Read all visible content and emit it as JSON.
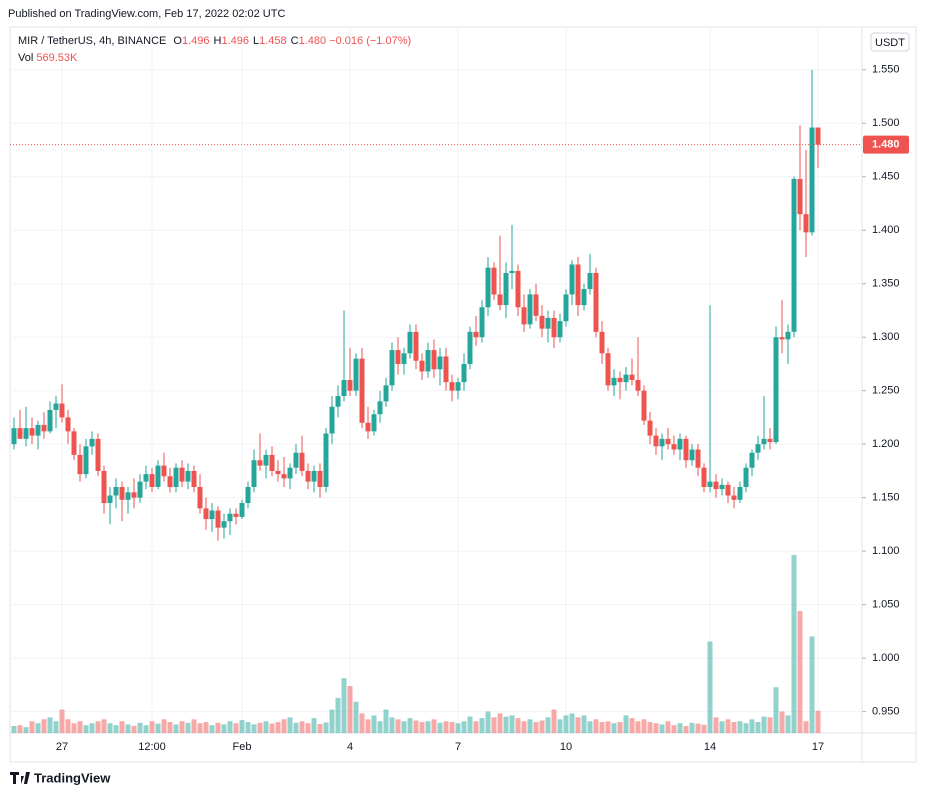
{
  "header": {
    "published": "Published on TradingView.com, Feb 17, 2022 02:02 UTC"
  },
  "chart_data": {
    "type": "candlestick",
    "symbol": "MIR / TetherUS, 4h, BINANCE",
    "legend": [
      {
        "key": "O",
        "value": "1.496"
      },
      {
        "key": "H",
        "value": "1.496"
      },
      {
        "key": "L",
        "value": "1.458"
      },
      {
        "key": "C",
        "value": "1.480"
      }
    ],
    "change": "−0.016 (−1.07%)",
    "currency": "USDT",
    "categories": [
      null,
      null,
      null,
      null,
      null,
      null,
      null,
      null,
      "27",
      null,
      null,
      null,
      null,
      null,
      null,
      null,
      null,
      null,
      null,
      null,
      null,
      null,
      null,
      "12:00",
      null,
      null,
      null,
      null,
      null,
      null,
      null,
      null,
      null,
      null,
      null,
      null,
      null,
      null,
      "Feb",
      null,
      null,
      null,
      null,
      null,
      null,
      null,
      null,
      null,
      null,
      null,
      null,
      null,
      null,
      null,
      null,
      null,
      "4",
      null,
      null,
      null,
      null,
      null,
      null,
      null,
      null,
      null,
      null,
      null,
      null,
      null,
      null,
      null,
      null,
      null,
      "7",
      null,
      null,
      null,
      null,
      null,
      null,
      null,
      null,
      null,
      null,
      null,
      null,
      null,
      null,
      null,
      null,
      null,
      "10",
      null,
      null,
      null,
      null,
      null,
      null,
      null,
      null,
      null,
      null,
      null,
      null,
      null,
      null,
      null,
      null,
      null,
      null,
      null,
      null,
      null,
      null,
      null,
      "14",
      null,
      null,
      null,
      null,
      null,
      null,
      null,
      null,
      null,
      null,
      null,
      null,
      null,
      null,
      null,
      null,
      null,
      "17"
    ],
    "ohlc": [
      [
        1.2,
        1.225,
        1.195,
        1.215
      ],
      [
        1.215,
        1.232,
        1.205,
        1.205
      ],
      [
        1.205,
        1.235,
        1.198,
        1.215
      ],
      [
        1.215,
        1.225,
        1.2,
        1.208
      ],
      [
        1.208,
        1.222,
        1.195,
        1.218
      ],
      [
        1.218,
        1.23,
        1.205,
        1.212
      ],
      [
        1.212,
        1.24,
        1.21,
        1.232
      ],
      [
        1.232,
        1.245,
        1.215,
        1.238
      ],
      [
        1.238,
        1.256,
        1.22,
        1.225
      ],
      [
        1.225,
        1.232,
        1.2,
        1.212
      ],
      [
        1.212,
        1.215,
        1.185,
        1.19
      ],
      [
        1.19,
        1.2,
        1.165,
        1.172
      ],
      [
        1.172,
        1.205,
        1.168,
        1.198
      ],
      [
        1.198,
        1.212,
        1.19,
        1.205
      ],
      [
        1.205,
        1.21,
        1.17,
        1.175
      ],
      [
        1.175,
        1.18,
        1.135,
        1.145
      ],
      [
        1.145,
        1.16,
        1.125,
        1.152
      ],
      [
        1.152,
        1.168,
        1.14,
        1.16
      ],
      [
        1.16,
        1.165,
        1.128,
        1.148
      ],
      [
        1.148,
        1.16,
        1.135,
        1.155
      ],
      [
        1.155,
        1.168,
        1.14,
        1.15
      ],
      [
        1.15,
        1.172,
        1.145,
        1.165
      ],
      [
        1.165,
        1.18,
        1.158,
        1.172
      ],
      [
        1.172,
        1.178,
        1.155,
        1.16
      ],
      [
        1.16,
        1.185,
        1.158,
        1.18
      ],
      [
        1.18,
        1.192,
        1.165,
        1.17
      ],
      [
        1.17,
        1.178,
        1.155,
        1.16
      ],
      [
        1.16,
        1.182,
        1.155,
        1.178
      ],
      [
        1.178,
        1.185,
        1.16,
        1.165
      ],
      [
        1.165,
        1.182,
        1.158,
        1.175
      ],
      [
        1.175,
        1.18,
        1.155,
        1.16
      ],
      [
        1.16,
        1.172,
        1.135,
        1.14
      ],
      [
        1.14,
        1.15,
        1.12,
        1.13
      ],
      [
        1.13,
        1.145,
        1.118,
        1.138
      ],
      [
        1.138,
        1.142,
        1.11,
        1.122
      ],
      [
        1.122,
        1.135,
        1.112,
        1.128
      ],
      [
        1.128,
        1.14,
        1.115,
        1.135
      ],
      [
        1.135,
        1.14,
        1.125,
        1.132
      ],
      [
        1.132,
        1.148,
        1.13,
        1.145
      ],
      [
        1.145,
        1.165,
        1.14,
        1.16
      ],
      [
        1.16,
        1.195,
        1.155,
        1.185
      ],
      [
        1.185,
        1.21,
        1.175,
        1.18
      ],
      [
        1.18,
        1.195,
        1.168,
        1.19
      ],
      [
        1.19,
        1.198,
        1.17,
        1.175
      ],
      [
        1.175,
        1.185,
        1.165,
        1.172
      ],
      [
        1.172,
        1.188,
        1.16,
        1.168
      ],
      [
        1.168,
        1.182,
        1.158,
        1.178
      ],
      [
        1.178,
        1.2,
        1.172,
        1.192
      ],
      [
        1.192,
        1.208,
        1.17,
        1.175
      ],
      [
        1.175,
        1.182,
        1.158,
        1.165
      ],
      [
        1.165,
        1.18,
        1.155,
        1.175
      ],
      [
        1.175,
        1.182,
        1.15,
        1.16
      ],
      [
        1.16,
        1.215,
        1.155,
        1.21
      ],
      [
        1.21,
        1.245,
        1.2,
        1.235
      ],
      [
        1.235,
        1.255,
        1.225,
        1.245
      ],
      [
        1.245,
        1.325,
        1.24,
        1.26
      ],
      [
        1.26,
        1.29,
        1.245,
        1.25
      ],
      [
        1.25,
        1.285,
        1.245,
        1.28
      ],
      [
        1.28,
        1.29,
        1.215,
        1.22
      ],
      [
        1.22,
        1.235,
        1.205,
        1.212
      ],
      [
        1.212,
        1.232,
        1.208,
        1.228
      ],
      [
        1.228,
        1.25,
        1.22,
        1.24
      ],
      [
        1.24,
        1.262,
        1.235,
        1.255
      ],
      [
        1.255,
        1.295,
        1.25,
        1.288
      ],
      [
        1.288,
        1.3,
        1.265,
        1.275
      ],
      [
        1.275,
        1.29,
        1.265,
        1.285
      ],
      [
        1.285,
        1.312,
        1.28,
        1.305
      ],
      [
        1.305,
        1.312,
        1.27,
        1.278
      ],
      [
        1.278,
        1.285,
        1.26,
        1.268
      ],
      [
        1.268,
        1.295,
        1.262,
        1.288
      ],
      [
        1.288,
        1.298,
        1.262,
        1.27
      ],
      [
        1.27,
        1.29,
        1.255,
        1.282
      ],
      [
        1.282,
        1.29,
        1.25,
        1.258
      ],
      [
        1.258,
        1.265,
        1.24,
        1.25
      ],
      [
        1.25,
        1.262,
        1.242,
        1.258
      ],
      [
        1.258,
        1.285,
        1.25,
        1.275
      ],
      [
        1.275,
        1.31,
        1.27,
        1.305
      ],
      [
        1.305,
        1.32,
        1.292,
        1.3
      ],
      [
        1.3,
        1.335,
        1.295,
        1.328
      ],
      [
        1.328,
        1.375,
        1.32,
        1.365
      ],
      [
        1.365,
        1.37,
        1.335,
        1.34
      ],
      [
        1.34,
        1.395,
        1.325,
        1.33
      ],
      [
        1.33,
        1.37,
        1.318,
        1.36
      ],
      [
        1.36,
        1.405,
        1.345,
        1.362
      ],
      [
        1.362,
        1.368,
        1.32,
        1.328
      ],
      [
        1.328,
        1.34,
        1.305,
        1.312
      ],
      [
        1.312,
        1.345,
        1.308,
        1.34
      ],
      [
        1.34,
        1.35,
        1.315,
        1.32
      ],
      [
        1.32,
        1.33,
        1.3,
        1.308
      ],
      [
        1.308,
        1.325,
        1.295,
        1.318
      ],
      [
        1.318,
        1.325,
        1.29,
        1.3
      ],
      [
        1.3,
        1.322,
        1.295,
        1.315
      ],
      [
        1.315,
        1.345,
        1.31,
        1.34
      ],
      [
        1.34,
        1.372,
        1.33,
        1.368
      ],
      [
        1.368,
        1.375,
        1.32,
        1.33
      ],
      [
        1.33,
        1.35,
        1.325,
        1.345
      ],
      [
        1.345,
        1.378,
        1.34,
        1.36
      ],
      [
        1.36,
        1.365,
        1.3,
        1.305
      ],
      [
        1.305,
        1.315,
        1.275,
        1.285
      ],
      [
        1.285,
        1.29,
        1.25,
        1.255
      ],
      [
        1.255,
        1.27,
        1.245,
        1.262
      ],
      [
        1.262,
        1.268,
        1.242,
        1.258
      ],
      [
        1.258,
        1.272,
        1.25,
        1.265
      ],
      [
        1.265,
        1.28,
        1.255,
        1.26
      ],
      [
        1.26,
        1.3,
        1.245,
        1.25
      ],
      [
        1.25,
        1.255,
        1.218,
        1.222
      ],
      [
        1.222,
        1.23,
        1.2,
        1.208
      ],
      [
        1.208,
        1.215,
        1.19,
        1.198
      ],
      [
        1.198,
        1.21,
        1.185,
        1.205
      ],
      [
        1.205,
        1.215,
        1.195,
        1.2
      ],
      [
        1.2,
        1.208,
        1.19,
        1.195
      ],
      [
        1.195,
        1.21,
        1.185,
        1.205
      ],
      [
        1.205,
        1.208,
        1.178,
        1.185
      ],
      [
        1.185,
        1.2,
        1.18,
        1.195
      ],
      [
        1.195,
        1.2,
        1.17,
        1.178
      ],
      [
        1.178,
        1.182,
        1.155,
        1.16
      ],
      [
        1.16,
        1.33,
        1.155,
        1.165
      ],
      [
        1.165,
        1.172,
        1.15,
        1.158
      ],
      [
        1.158,
        1.168,
        1.152,
        1.162
      ],
      [
        1.162,
        1.165,
        1.145,
        1.152
      ],
      [
        1.152,
        1.16,
        1.14,
        1.148
      ],
      [
        1.148,
        1.165,
        1.145,
        1.16
      ],
      [
        1.16,
        1.182,
        1.155,
        1.178
      ],
      [
        1.178,
        1.195,
        1.17,
        1.192
      ],
      [
        1.192,
        1.208,
        1.185,
        1.2
      ],
      [
        1.2,
        1.245,
        1.195,
        1.205
      ],
      [
        1.205,
        1.215,
        1.195,
        1.202
      ],
      [
        1.202,
        1.31,
        1.2,
        1.3
      ],
      [
        1.3,
        1.335,
        1.285,
        1.298
      ],
      [
        1.298,
        1.312,
        1.275,
        1.305
      ],
      [
        1.305,
        1.45,
        1.3,
        1.448
      ],
      [
        1.448,
        1.498,
        1.4,
        1.415
      ],
      [
        1.415,
        1.475,
        1.375,
        1.398
      ],
      [
        1.398,
        1.55,
        1.395,
        1.496
      ],
      [
        1.496,
        1.496,
        1.458,
        1.48
      ]
    ],
    "up_color": "#26a69a",
    "down_color": "#ef5350",
    "volume": {
      "name": "Vol",
      "current_label": "569.53K",
      "values": [
        180000,
        200000,
        150000,
        300000,
        250000,
        350000,
        400000,
        300000,
        600000,
        350000,
        250000,
        300000,
        200000,
        250000,
        300000,
        350000,
        250000,
        200000,
        300000,
        220000,
        180000,
        260000,
        200000,
        300000,
        240000,
        350000,
        280000,
        220000,
        300000,
        260000,
        350000,
        250000,
        280000,
        200000,
        260000,
        220000,
        300000,
        250000,
        330000,
        280000,
        220000,
        260000,
        300000,
        240000,
        280000,
        350000,
        400000,
        260000,
        300000,
        250000,
        380000,
        230000,
        270000,
        600000,
        900000,
        1400000,
        1200000,
        800000,
        500000,
        350000,
        450000,
        300000,
        600000,
        400000,
        350000,
        300000,
        380000,
        320000,
        280000,
        300000,
        350000,
        260000,
        300000,
        280000,
        250000,
        300000,
        420000,
        300000,
        380000,
        550000,
        400000,
        500000,
        420000,
        450000,
        380000,
        300000,
        350000,
        280000,
        320000,
        400000,
        600000,
        350000,
        450000,
        500000,
        400000,
        450000,
        300000,
        350000,
        280000,
        300000,
        250000,
        280000,
        450000,
        380000,
        300000,
        350000,
        280000,
        250000,
        220000,
        300000,
        200000,
        250000,
        180000,
        260000,
        240000,
        210000,
        2340000,
        400000,
        300000,
        350000,
        280000,
        300000,
        250000,
        350000,
        280000,
        420000,
        400000,
        1170000,
        550000,
        450000,
        4550000,
        3120000,
        300000,
        2470000,
        569530
      ]
    },
    "last_price": {
      "value": 1.48,
      "label": "1.480"
    },
    "ylim": [
      0.93,
      1.59
    ],
    "yticks": [
      {
        "value": 0.95,
        "label": "0.950"
      },
      {
        "value": 1.0,
        "label": "1.000"
      },
      {
        "value": 1.05,
        "label": "1.050"
      },
      {
        "value": 1.1,
        "label": "1.100"
      },
      {
        "value": 1.15,
        "label": "1.150"
      },
      {
        "value": 1.2,
        "label": "1.200"
      },
      {
        "value": 1.25,
        "label": "1.250"
      },
      {
        "value": 1.3,
        "label": "1.300"
      },
      {
        "value": 1.35,
        "label": "1.350"
      },
      {
        "value": 1.4,
        "label": "1.400"
      },
      {
        "value": 1.45,
        "label": "1.450"
      },
      {
        "value": 1.5,
        "label": "1.500"
      },
      {
        "value": 1.55,
        "label": "1.550"
      }
    ],
    "grid": true
  },
  "footer": {
    "brand": "TradingView"
  }
}
